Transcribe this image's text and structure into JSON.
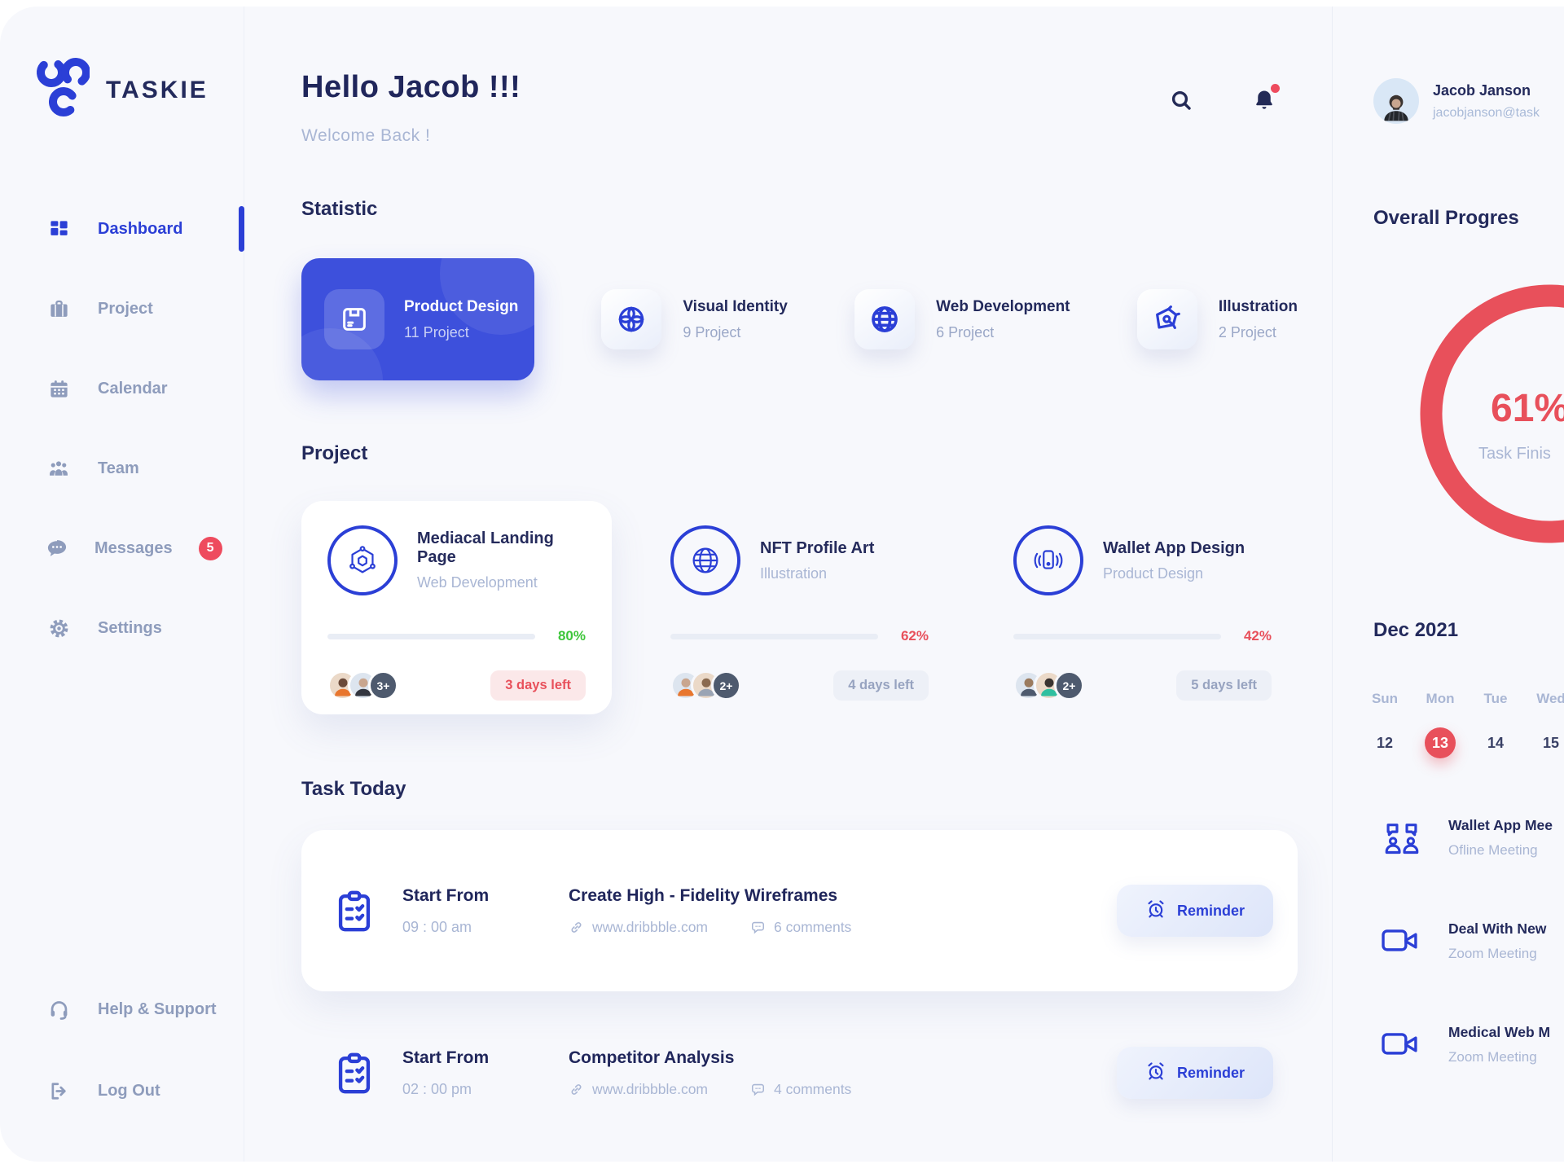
{
  "brand": {
    "name": "TASKIE"
  },
  "sidebar": {
    "items": [
      {
        "label": "Dashboard",
        "active": true
      },
      {
        "label": "Project"
      },
      {
        "label": "Calendar"
      },
      {
        "label": "Team"
      },
      {
        "label": "Messages",
        "badge": "5"
      },
      {
        "label": "Settings"
      }
    ],
    "footer_items": [
      {
        "label": "Help & Support"
      },
      {
        "label": "Log Out"
      }
    ]
  },
  "header": {
    "greeting": "Hello Jacob !!!",
    "subtitle": "Welcome Back !"
  },
  "statistic": {
    "title": "Statistic",
    "cards": [
      {
        "name": "Product Design",
        "count": "11 Project",
        "highlight": true
      },
      {
        "name": "Visual Identity",
        "count": "9 Project"
      },
      {
        "name": "Web Development",
        "count": "6 Project"
      },
      {
        "name": "Illustration",
        "count": "2 Project"
      }
    ]
  },
  "projects": {
    "title": "Project",
    "cards": [
      {
        "name": "Mediacal Landing Page",
        "category": "Web Development",
        "progress": 80,
        "progress_label": "80%",
        "progress_color": "#3EC63B",
        "extra": "3+",
        "days_left": "3 days left",
        "urgent": true
      },
      {
        "name": "NFT Profile Art",
        "category": "Illustration",
        "progress": 62,
        "progress_label": "62%",
        "progress_color": "#E8505B",
        "extra": "2+",
        "days_left": "4 days left",
        "urgent": false
      },
      {
        "name": "Wallet App Design",
        "category": "Product Design",
        "progress": 42,
        "progress_label": "42%",
        "progress_color": "#E8505B",
        "extra": "2+",
        "days_left": "5 days left",
        "urgent": false
      }
    ]
  },
  "tasks": {
    "title": "Task Today",
    "reminder_label": "Reminder",
    "rows": [
      {
        "start_label": "Start From",
        "time": "09 : 00 am",
        "name": "Create High - Fidelity Wireframes",
        "link": "www.dribbble.com",
        "comments": "6 comments"
      },
      {
        "start_label": "Start From",
        "time": "02 : 00 pm",
        "name": "Competitor Analysis",
        "link": "www.dribbble.com",
        "comments": "4 comments"
      }
    ]
  },
  "profile": {
    "name": "Jacob Janson",
    "email": "jacobjanson@task"
  },
  "overall": {
    "title": "Overall Progres",
    "percent": "61%",
    "caption": "Task Finis"
  },
  "calendar": {
    "month": "Dec 2021",
    "days": [
      "Sun",
      "Mon",
      "Tue",
      "Wed"
    ],
    "dates": [
      {
        "d": "12",
        "selected": false
      },
      {
        "d": "13",
        "selected": true
      },
      {
        "d": "14",
        "selected": false
      },
      {
        "d": "15",
        "selected": false
      }
    ]
  },
  "meetings": [
    {
      "title": "Wallet App Mee",
      "subtitle": "Ofline Meeting"
    },
    {
      "title": "Deal With New",
      "subtitle": "Zoom Meeting"
    },
    {
      "title": "Medical Web M",
      "subtitle": "Zoom Meeting"
    }
  ],
  "colors": {
    "primary_blue": "#2B3FD6",
    "card_blue": "#3D50DC",
    "red": "#E8505B",
    "green": "#3EC63B",
    "badge_red": "#EE4B5E"
  }
}
